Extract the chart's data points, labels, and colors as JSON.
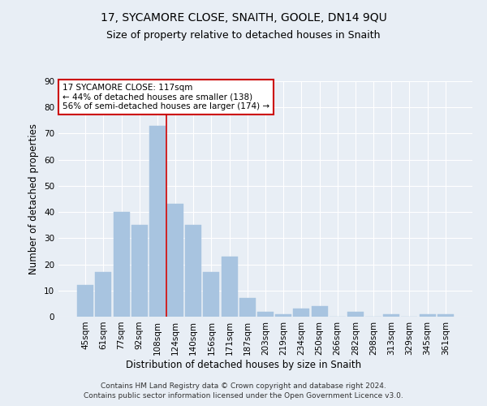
{
  "title": "17, SYCAMORE CLOSE, SNAITH, GOOLE, DN14 9QU",
  "subtitle": "Size of property relative to detached houses in Snaith",
  "xlabel": "Distribution of detached houses by size in Snaith",
  "ylabel": "Number of detached properties",
  "categories": [
    "45sqm",
    "61sqm",
    "77sqm",
    "92sqm",
    "108sqm",
    "124sqm",
    "140sqm",
    "156sqm",
    "171sqm",
    "187sqm",
    "203sqm",
    "219sqm",
    "234sqm",
    "250sqm",
    "266sqm",
    "282sqm",
    "298sqm",
    "313sqm",
    "329sqm",
    "345sqm",
    "361sqm"
  ],
  "values": [
    12,
    17,
    40,
    35,
    73,
    43,
    35,
    17,
    23,
    7,
    2,
    1,
    3,
    4,
    0,
    2,
    0,
    1,
    0,
    1,
    1
  ],
  "bar_color": "#a8c4e0",
  "bar_edge_color": "#a8c4e0",
  "property_line_x": 4.5,
  "annotation_title": "17 SYCAMORE CLOSE: 117sqm",
  "annotation_line1": "← 44% of detached houses are smaller (138)",
  "annotation_line2": "56% of semi-detached houses are larger (174) →",
  "annotation_box_color": "#ffffff",
  "annotation_box_edge_color": "#cc0000",
  "vline_color": "#cc0000",
  "footer1": "Contains HM Land Registry data © Crown copyright and database right 2024.",
  "footer2": "Contains public sector information licensed under the Open Government Licence v3.0.",
  "ylim": [
    0,
    90
  ],
  "background_color": "#e8eef5",
  "grid_color": "#ffffff",
  "title_fontsize": 10,
  "subtitle_fontsize": 9,
  "xlabel_fontsize": 8.5,
  "ylabel_fontsize": 8.5,
  "tick_fontsize": 7.5,
  "footer_fontsize": 6.5,
  "annotation_fontsize": 7.5
}
